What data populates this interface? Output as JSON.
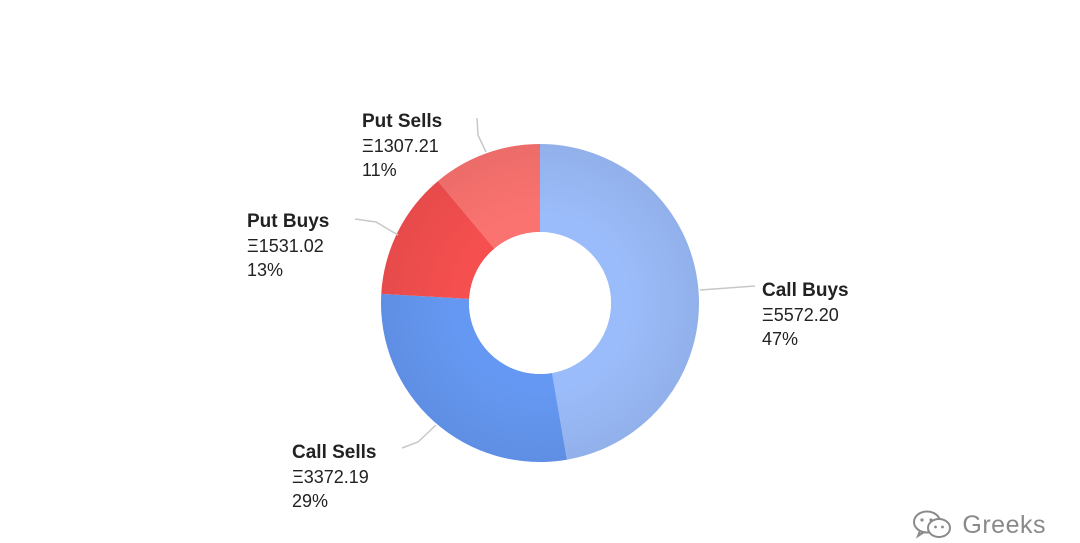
{
  "header": {
    "brand_text": "",
    "title_text": ""
  },
  "chart_data": {
    "type": "pie",
    "donut": true,
    "title": "",
    "currency_symbol": "Ξ",
    "slices": [
      {
        "name": "Call Buys",
        "value": 5572.2,
        "value_label": "Ξ5572.20",
        "percent_label": "47%",
        "color": "#9bbcfa"
      },
      {
        "name": "Call Sells",
        "value": 3372.19,
        "value_label": "Ξ3372.19",
        "percent_label": "29%",
        "color": "#6598f2"
      },
      {
        "name": "Put Buys",
        "value": 1531.02,
        "value_label": "Ξ1531.02",
        "percent_label": "13%",
        "color": "#f54f4f"
      },
      {
        "name": "Put Sells",
        "value": 1307.21,
        "value_label": "Ξ1307.21",
        "percent_label": "11%",
        "color": "#fb7370"
      }
    ],
    "start_angle_deg": 0,
    "direction": "clockwise",
    "legend": "none",
    "leader_line_color": "#c8c8c8"
  },
  "watermark": {
    "text": "Greeks",
    "icon": "wechat-icon"
  }
}
